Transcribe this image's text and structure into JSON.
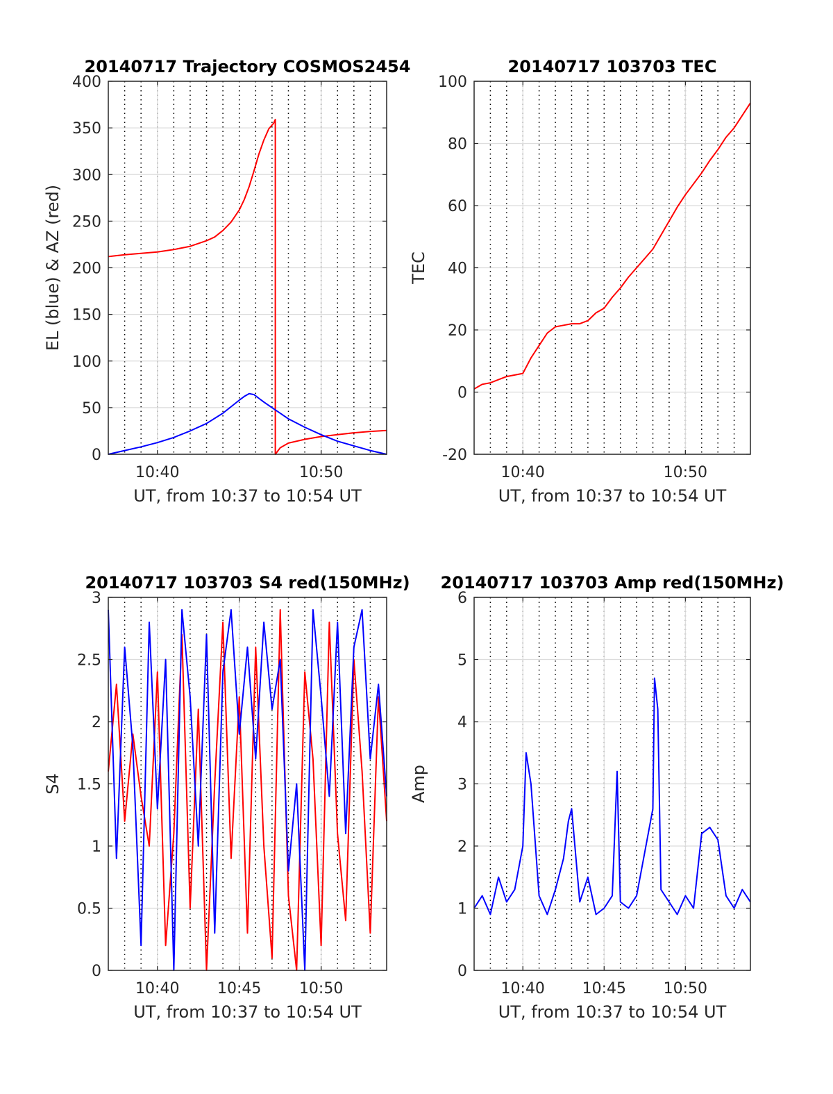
{
  "chart_data": [
    {
      "type": "line",
      "title": "20140717 Trajectory COSMOS2454",
      "xlabel": "UT, from 10:37 to 10:54 UT",
      "ylabel": "EL (blue) & AZ (red)",
      "xlim": [
        37,
        54
      ],
      "ylim": [
        0,
        400
      ],
      "xticks": [
        40,
        50
      ],
      "xtick_labels": [
        "10:40",
        "10:50"
      ],
      "yticks": [
        0,
        50,
        100,
        150,
        200,
        250,
        300,
        350,
        400
      ],
      "ytick_labels": [
        "0",
        "50",
        "100",
        "150",
        "200",
        "250",
        "300",
        "350",
        "400"
      ],
      "grid": true,
      "series": [
        {
          "color": "#ff0000",
          "x": [
            37,
            38,
            39,
            40,
            41,
            42,
            43,
            43.5,
            44,
            44.5,
            45,
            45.3,
            45.6,
            45.9,
            46.2,
            46.5,
            46.8,
            47.1,
            47.2,
            47.2,
            47.5,
            48,
            49,
            50,
            51,
            52,
            53,
            54
          ],
          "y": [
            212,
            214,
            215.5,
            217,
            219.5,
            223,
            229,
            233,
            240,
            249,
            262,
            273,
            287,
            304,
            322,
            337,
            349,
            355,
            359,
            0,
            7,
            12,
            16,
            19,
            21,
            23,
            24.5,
            25.5
          ]
        },
        {
          "color": "#0000ff",
          "x": [
            37,
            38,
            39,
            40,
            41,
            42,
            43,
            44,
            44.5,
            45,
            45.3,
            45.6,
            45.9,
            46.2,
            46.5,
            47,
            47.5,
            48,
            49,
            50,
            51,
            52,
            53,
            54
          ],
          "y": [
            0,
            4,
            8,
            12.5,
            18,
            25,
            33,
            44,
            51,
            58,
            62,
            65,
            64,
            60,
            56,
            50,
            44,
            38,
            29,
            21,
            14,
            9,
            4,
            0
          ]
        }
      ]
    },
    {
      "type": "line",
      "title": "20140717 103703 TEC",
      "xlabel": "UT, from 10:37 to 10:54 UT",
      "ylabel": "TEC",
      "xlim": [
        37,
        54
      ],
      "ylim": [
        -20,
        100
      ],
      "xticks": [
        40,
        50
      ],
      "xtick_labels": [
        "10:40",
        "10:50"
      ],
      "yticks": [
        -20,
        0,
        20,
        40,
        60,
        80,
        100
      ],
      "ytick_labels": [
        "-20",
        "0",
        "20",
        "40",
        "60",
        "80",
        "100"
      ],
      "grid": true,
      "series": [
        {
          "color": "#ff0000",
          "x": [
            37,
            37.5,
            38,
            38.5,
            39,
            39.5,
            40,
            40.5,
            41,
            41.5,
            42,
            42.5,
            43,
            43.5,
            44,
            44.5,
            45,
            45.5,
            46,
            46.5,
            47,
            47.5,
            48,
            48.5,
            49,
            49.5,
            50,
            50.5,
            51,
            51.5,
            52,
            52.5,
            53,
            53.5,
            54
          ],
          "y": [
            1,
            2.5,
            3,
            4,
            5,
            5.5,
            6,
            11,
            15,
            19,
            21,
            21.5,
            22,
            22,
            23,
            25.5,
            27,
            30.5,
            33.5,
            37,
            40,
            43,
            46,
            50.5,
            55,
            59.5,
            63.5,
            67,
            70.5,
            74.5,
            78,
            82,
            85,
            89,
            93
          ]
        }
      ]
    },
    {
      "type": "line",
      "title": "20140717 103703 S4 red(150MHz)",
      "xlabel": "UT, from 10:37 to 10:54 UT",
      "ylabel": "S4",
      "xlim": [
        37,
        54
      ],
      "ylim": [
        0,
        3
      ],
      "xticks": [
        40,
        45,
        50
      ],
      "xtick_labels": [
        "10:40",
        "10:45",
        "10:50"
      ],
      "yticks": [
        0,
        0.5,
        1,
        1.5,
        2,
        2.5,
        3
      ],
      "ytick_labels": [
        "0",
        "0.5",
        "1",
        "1.5",
        "2",
        "2.5",
        "3"
      ],
      "grid": true,
      "series": [
        {
          "color": "#ff0000",
          "x": [
            37,
            37.5,
            38,
            38.5,
            39,
            39.5,
            40,
            40.5,
            41,
            41.5,
            42,
            42.5,
            43,
            43.5,
            44,
            44.5,
            45,
            45.5,
            46,
            46.5,
            47,
            47.5,
            48,
            48.5,
            49,
            49.5,
            50,
            50.5,
            51,
            51.5,
            52,
            52.5,
            53,
            53.5,
            54
          ],
          "y": [
            1.6,
            2.3,
            1.2,
            1.9,
            1.4,
            1.0,
            2.4,
            0.2,
            1.1,
            2.7,
            0.5,
            2.1,
            0.0,
            1.5,
            2.8,
            0.9,
            2.2,
            0.3,
            2.6,
            1.0,
            0.1,
            2.9,
            0.6,
            0.0,
            2.4,
            1.7,
            0.2,
            2.8,
            1.1,
            0.4,
            2.5,
            1.6,
            0.3,
            2.2,
            1.2
          ]
        },
        {
          "color": "#0000ff",
          "x": [
            37,
            37.5,
            38,
            38.5,
            39,
            39.5,
            40,
            40.5,
            41,
            41.5,
            42,
            42.5,
            43,
            43.5,
            44,
            44.5,
            45,
            45.5,
            46,
            46.5,
            47,
            47.5,
            48,
            48.5,
            49,
            49.5,
            50,
            50.5,
            51,
            51.5,
            52,
            52.5,
            53,
            53.5,
            54
          ],
          "y": [
            2.9,
            0.9,
            2.6,
            1.8,
            0.2,
            2.8,
            1.3,
            2.5,
            0.0,
            2.9,
            2.2,
            1.0,
            2.7,
            0.3,
            2.4,
            2.9,
            1.9,
            2.6,
            1.7,
            2.8,
            2.1,
            2.5,
            0.8,
            1.5,
            0.0,
            2.9,
            2.2,
            1.4,
            2.8,
            1.1,
            2.6,
            2.9,
            1.7,
            2.3,
            1.4
          ]
        }
      ]
    },
    {
      "type": "line",
      "title": "20140717 103703 Amp red(150MHz)",
      "xlabel": "UT, from 10:37 to 10:54 UT",
      "ylabel": "Amp",
      "xlim": [
        37,
        54
      ],
      "ylim": [
        0,
        6
      ],
      "xticks": [
        40,
        45,
        50
      ],
      "xtick_labels": [
        "10:40",
        "10:45",
        "10:50"
      ],
      "yticks": [
        0,
        1,
        2,
        3,
        4,
        5,
        6
      ],
      "ytick_labels": [
        "0",
        "1",
        "2",
        "3",
        "4",
        "5",
        "6"
      ],
      "grid": true,
      "series": [
        {
          "color": "#0000ff",
          "x": [
            37,
            37.5,
            38,
            38.5,
            39,
            39.5,
            40,
            40.2,
            40.5,
            41,
            41.5,
            42,
            42.5,
            42.8,
            43,
            43.5,
            44,
            44.5,
            45,
            45.5,
            45.8,
            46,
            46.5,
            47,
            47.5,
            48,
            48.1,
            48.3,
            48.5,
            49,
            49.5,
            50,
            50.5,
            51,
            51.5,
            52,
            52.5,
            53,
            53.5,
            54
          ],
          "y": [
            1.0,
            1.2,
            0.9,
            1.5,
            1.1,
            1.3,
            2.0,
            3.5,
            3.0,
            1.2,
            0.9,
            1.3,
            1.8,
            2.4,
            2.6,
            1.1,
            1.5,
            0.9,
            1.0,
            1.2,
            3.2,
            1.1,
            1.0,
            1.2,
            1.9,
            2.6,
            4.7,
            4.2,
            1.3,
            1.1,
            0.9,
            1.2,
            1.0,
            2.2,
            2.3,
            2.1,
            1.2,
            1.0,
            1.3,
            1.1
          ]
        }
      ]
    }
  ]
}
